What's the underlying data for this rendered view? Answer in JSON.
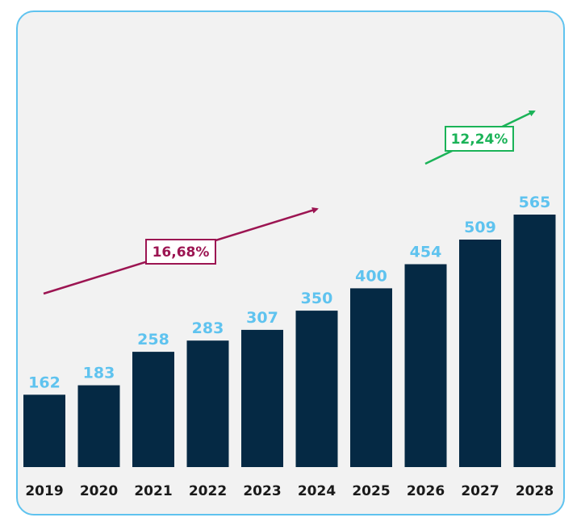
{
  "chart_data": {
    "type": "bar",
    "categories": [
      "2019",
      "2020",
      "2021",
      "2022",
      "2023",
      "2024",
      "2025",
      "2026",
      "2027",
      "2028"
    ],
    "values": [
      162,
      183,
      258,
      283,
      307,
      350,
      400,
      454,
      509,
      565
    ],
    "ylim": [
      0,
      600
    ],
    "grid": false,
    "bar_color": "#052944",
    "value_label_color": "#5fc3ef",
    "annotations": [
      {
        "label": "16,68%",
        "color": "#9c1552",
        "span": [
          "2019",
          "2024"
        ]
      },
      {
        "label": "12,24%",
        "color": "#1bb358",
        "span": [
          "2026",
          "2028"
        ]
      }
    ]
  }
}
